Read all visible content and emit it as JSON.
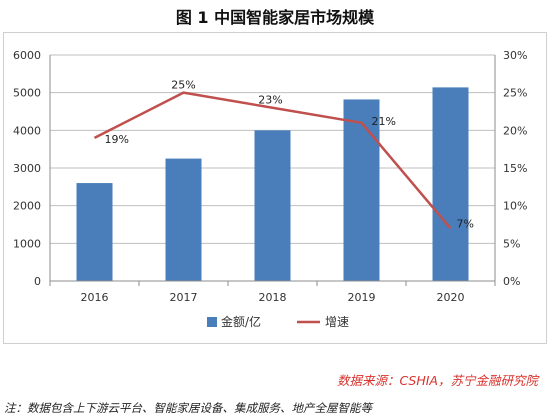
{
  "title": "图 1 中国智能家居市场规模",
  "source": "数据来源：CSHIA，苏宁金融研究院",
  "note": "注：数据包含上下游云平台、智能家居设备、集成服务、地产全屋智能等",
  "chart_data": {
    "type": "bar",
    "categories": [
      "2016",
      "2017",
      "2018",
      "2019",
      "2020"
    ],
    "series": [
      {
        "name": "金额/亿",
        "type": "bar",
        "axis": "left",
        "values": [
          2600,
          3250,
          4000,
          4820,
          5140
        ],
        "color": "#4a7ebb"
      },
      {
        "name": "增速",
        "type": "line",
        "axis": "right",
        "values": [
          19,
          25,
          23,
          21,
          7
        ],
        "labels": [
          "19%",
          "25%",
          "23%",
          "21%",
          "7%"
        ],
        "color": "#c0504d"
      }
    ],
    "yleft": {
      "min": 0,
      "max": 6000,
      "ticks": [
        "0",
        "1000",
        "2000",
        "3000",
        "4000",
        "5000",
        "6000"
      ]
    },
    "yright": {
      "min": 0,
      "max": 30,
      "ticks": [
        "0%",
        "5%",
        "10%",
        "15%",
        "20%",
        "25%",
        "30%"
      ]
    },
    "grid": true,
    "legend": "bottom"
  }
}
